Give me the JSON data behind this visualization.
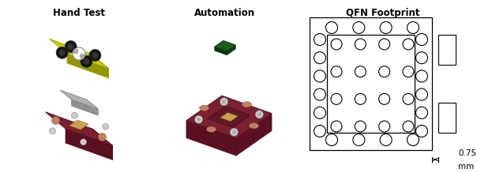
{
  "bg_color": "#ffffff",
  "title_hand": "Hand Test",
  "title_auto": "Automation",
  "title_qfn": "QFN Footprint",
  "title_fontsize": 8.5,
  "dim_text": "0.75",
  "dim_unit": "mm",
  "line_color": "#000000",
  "yellow_color": "#c8cc00",
  "yellow_edge": "#a0a000",
  "yellow_dark": "#909400",
  "gray_color": "#b0b0b0",
  "gray_edge": "#888888",
  "maroon_color": "#7a2030",
  "maroon_edge": "#501020",
  "maroon_dark": "#5a1020",
  "copper_color": "#c08060",
  "chip_color": "#c8a050",
  "green_color": "#1a6020",
  "green_edge": "#0a4010",
  "screw_color": "#cccccc",
  "screw_dark": "#aaaaaa"
}
